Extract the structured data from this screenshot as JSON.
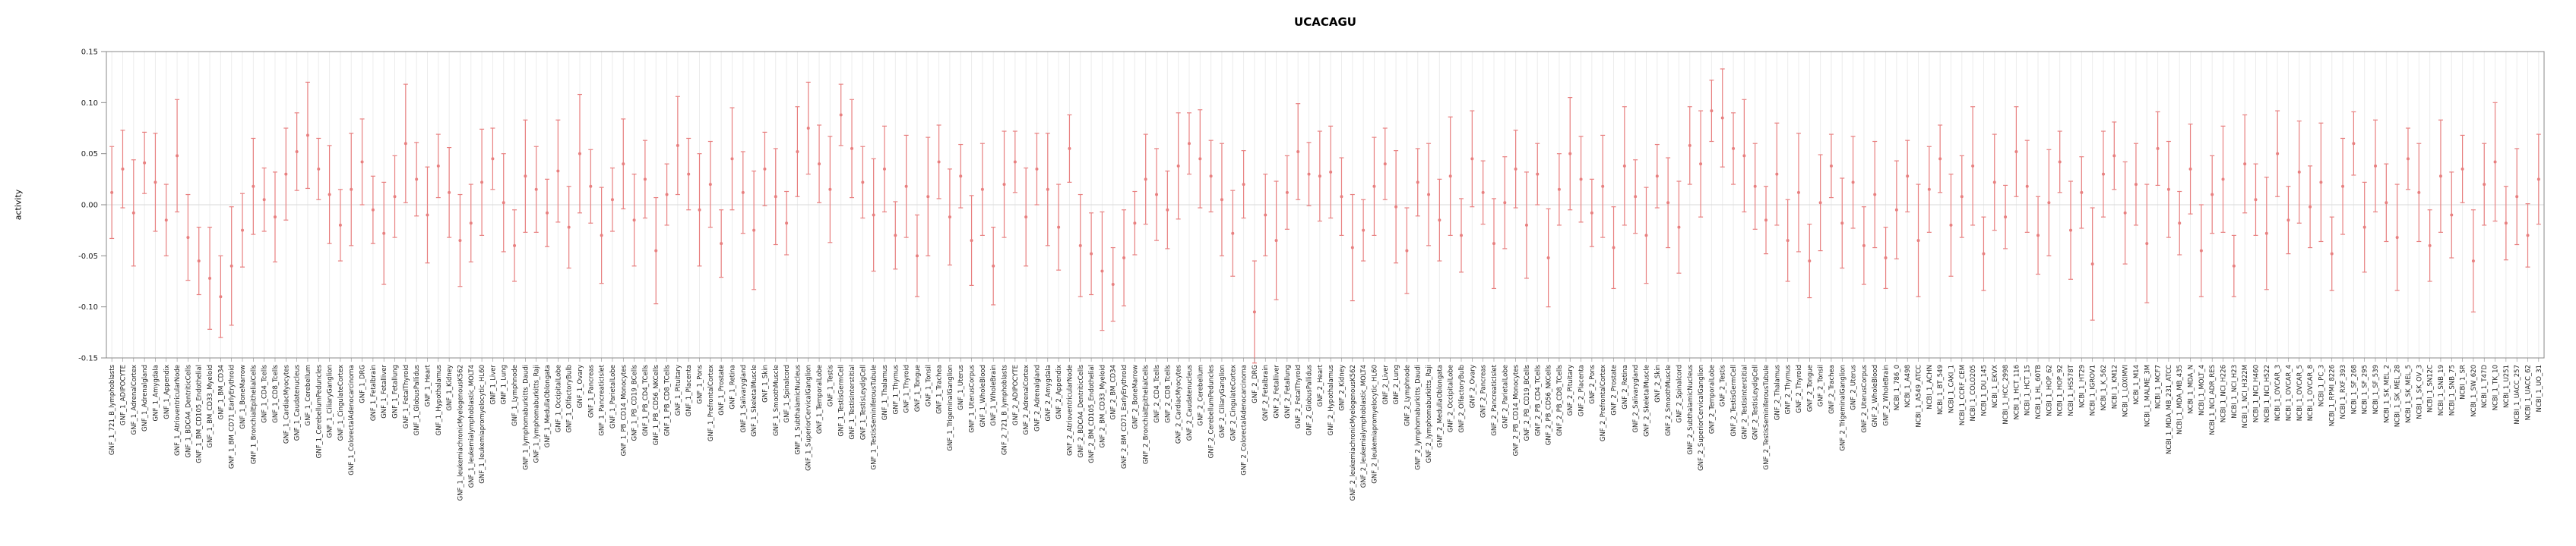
{
  "chart_data": {
    "type": "scatter",
    "title": "UCACAGU",
    "ylabel": "activity",
    "xlabel": "",
    "ylim": [
      -0.15,
      0.15
    ],
    "yticks": [
      -0.15,
      -0.1,
      -0.05,
      0.0,
      0.05,
      0.1,
      0.15
    ],
    "ytick_labels": [
      "-0.15",
      "-0.10",
      "-0.05",
      "0.00",
      "0.05",
      "0.10",
      "0.15"
    ],
    "error_type": "errorbar_with_caps",
    "legend": "none",
    "grid": "vertical-per-sample",
    "colors": {
      "point": "#e88080",
      "grid": "#ececec",
      "axis": "#888888",
      "zero_line": "#d9d9d9",
      "text": "#222222"
    },
    "categories": [
      "GNF_1_721_B_lymphoblasts",
      "GNF_1_ADIPOCYTE",
      "GNF_1_AdrenalCortex",
      "GNF_1_Adrenalgland",
      "GNF_1_Amygdala",
      "GNF_1_Appendix",
      "GNF_1_AtrioventricularNode",
      "GNF_1_BDCA4_DentriticCells",
      "GNF_1_BM_CD105_Endothelial",
      "GNF_1_BM_CD33_Myeloid",
      "GNF_1_BM_CD34",
      "GNF_1_BM_CD71_EarlyErythroid",
      "GNF_1_BoneMarrow",
      "GNF_1_BronchialEpithelialCells",
      "GNF_1_CD4_Tcells",
      "GNF_1_CD8_Tcells",
      "GNF_1_CardiacMyocytes",
      "GNF_1_Caudatenucleus",
      "GNF_1_Cerebellum",
      "GNF_1_CerebellumPeduncles",
      "GNF_1_CiliaryGanglion",
      "GNF_1_CingulateCortex",
      "GNF_1_ColorectalAdenocarcinoma",
      "GNF_1_DRG",
      "GNF_1_Fetalbrain",
      "GNF_1_Fetalliver",
      "GNF_1_Fetallung",
      "GNF_1_FetalThyroid",
      "GNF_1_GlobusPallidus",
      "GNF_1_Heart",
      "GNF_1_Hypothalamus",
      "GNF_1_Kidney",
      "GNF_1_leukemiachronicMyelogenousK562",
      "GNF_1_leukemialymphoblastic_MOLT4",
      "GNF_1_leukemiapromyelocytic_HL60",
      "GNF_1_Liver",
      "GNF_1_Lung",
      "GNF_1_Lymphnode",
      "GNF_1_lymphomaburkitts_Daudi",
      "GNF_1_lymphomaburkitts_Raji",
      "GNF_1_MedullaOblongata",
      "GNF_1_OccipitalLobe",
      "GNF_1_OlfactoryBulb",
      "GNF_1_Ovary",
      "GNF_1_Pancreas",
      "GNF_1_PancreaticIslet",
      "GNF_1_ParietalLobe",
      "GNF_1_PB_CD14_Monocytes",
      "GNF_1_PB_CD19_BCells",
      "GNF_1_PB_CD4_TCells",
      "GNF_1_PB_CD56_NKCells",
      "GNF_1_PB_CD8_TCells",
      "GNF_1_Pituitary",
      "GNF_1_Placenta",
      "GNF_1_Pons",
      "GNF_1_PrefrontalCortex",
      "GNF_1_Prostate",
      "GNF_1_Retina",
      "GNF_1_Salivarygland",
      "GNF_1_SkeletalMuscle",
      "GNF_1_Skin",
      "GNF_1_SmoothMuscle",
      "GNF_1_Spinalcord",
      "GNF_1_SubthalamicNucleus",
      "GNF_1_SuperiorCervicalGanglion",
      "GNF_1_TemporalLobe",
      "GNF_1_Testis",
      "GNF_1_TestisGermCell",
      "GNF_1_TestisInterstitial",
      "GNF_1_TestisLeydigCell",
      "GNF_1_TestisSeminiferousTubule",
      "GNF_1_Thalamus",
      "GNF_1_Thymus",
      "GNF_1_Thyroid",
      "GNF_1_Tongue",
      "GNF_1_Tonsil",
      "GNF_1_Trachea",
      "GNF_1_TrigeminalGanglion",
      "GNF_1_Uterus",
      "GNF_1_UterusCorpus",
      "GNF_1_WholeBlood",
      "GNF_1_WholeBrain",
      "GNF_2_721_B_lymphoblasts",
      "GNF_2_ADIPOCYTE",
      "GNF_2_AdrenalCortex",
      "GNF_2_Adrenalgland",
      "GNF_2_Amygdala",
      "GNF_2_Appendix",
      "GNF_2_AtrioventricularNode",
      "GNF_2_BDCA4_DentriticCells",
      "GNF_2_BM_CD105_Endothelial",
      "GNF_2_BM_CD33_Myeloid",
      "GNF_2_BM_CD34",
      "GNF_2_BM_CD71_EarlyErythroid",
      "GNF_2_BoneMarrow",
      "GNF_2_BronchialEpithelialCells",
      "GNF_2_CD4_Tcells",
      "GNF_2_CD8_Tcells",
      "GNF_2_CardiacMyocytes",
      "GNF_2_Caudatenucleus",
      "GNF_2_Cerebellum",
      "GNF_2_CerebellumPeduncles",
      "GNF_2_CiliaryGanglion",
      "GNF_2_CingulateCortex",
      "GNF_2_ColorectalAdenocarcinoma",
      "GNF_2_DRG",
      "GNF_2_Fetalbrain",
      "GNF_2_Fetalliver",
      "GNF_2_Fetallung",
      "GNF_2_FetalThyroid",
      "GNF_2_GlobusPallidus",
      "GNF_2_Heart",
      "GNF_2_Hypothalamus",
      "GNF_2_Kidney",
      "GNF_2_leukemiachronicMyelogenousK562",
      "GNF_2_leukemialymphoblastic_MOLT4",
      "GNF_2_leukemiapromyelocytic_HL60",
      "GNF_2_Liver",
      "GNF_2_Lung",
      "GNF_2_Lymphnode",
      "GNF_2_lymphomaburkitts_Daudi",
      "GNF_2_lymphomaburkitts_Raji",
      "GNF_2_MedullaOblongata",
      "GNF_2_OccipitalLobe",
      "GNF_2_OlfactoryBulb",
      "GNF_2_Ovary",
      "GNF_2_Pancreas",
      "GNF_2_PancreaticIslet",
      "GNF_2_ParietalLobe",
      "GNF_2_PB_CD14_Monocytes",
      "GNF_2_PB_CD19_BCells",
      "GNF_2_PB_CD4_TCells",
      "GNF_2_PB_CD56_NKCells",
      "GNF_2_PB_CD8_TCells",
      "GNF_2_Pituitary",
      "GNF_2_Placenta",
      "GNF_2_Pons",
      "GNF_2_PrefrontalCortex",
      "GNF_2_Prostate",
      "GNF_2_Retina",
      "GNF_2_Salivarygland",
      "GNF_2_SkeletalMuscle",
      "GNF_2_Skin",
      "GNF_2_SmoothMuscle",
      "GNF_2_Spinalcord",
      "GNF_2_SubthalamicNucleus",
      "GNF_2_SuperiorCervicalGanglion",
      "GNF_2_TemporalLobe",
      "GNF_2_Testis",
      "GNF_2_TestisGermCell",
      "GNF_2_TestisInterstitial",
      "GNF_2_TestisLeydigCell",
      "GNF_2_TestisSeminiferousTubule",
      "GNF_2_Thalamus",
      "GNF_2_Thymus",
      "GNF_2_Thyroid",
      "GNF_2_Tongue",
      "GNF_2_Tonsil",
      "GNF_2_Trachea",
      "GNF_2_TrigeminalGanglion",
      "GNF_2_Uterus",
      "GNF_2_UterusCorpus",
      "GNF_2_WholeBlood",
      "GNF_2_WholeBrain",
      "NCBI_1_786_0",
      "NCBI_1_A498",
      "NCBI_1_A549_ATCC",
      "NCBI_1_ACHN",
      "NCBI_1_BT_549",
      "NCBI_1_CAKI_1",
      "NCBI_1_CCRF_CEM",
      "NCBI_1_COLO205",
      "NCBI_1_DU_145",
      "NCBI_1_EKVX",
      "NCBI_1_HCC_2998",
      "NCBI_1_HCT_116",
      "NCBI_1_HCT_15",
      "NCBI_1_HL_60TB",
      "NCBI_1_HOP_62",
      "NCBI_1_HOP_92",
      "NCBI_1_HS578T",
      "NCBI_1_HT29",
      "NCBI_1_IGROV1",
      "NCBI_1_K_562",
      "NCBI_1_KM12",
      "NCBI_1_LOXIMVI",
      "NCBI_1_M14",
      "NCBI_1_MALME_3M",
      "NCBI_1_MCF7",
      "NCBI_1_MDA_MB_231_ATCC",
      "NCBI_1_MDA_MB_435",
      "NCBI_1_MDA_N",
      "NCBI_1_MOLT_4",
      "NCBI_1_NCI_ADR_RES",
      "NCBI_1_NCI_H226",
      "NCBI_1_NCI_H23",
      "NCBI_1_NCI_H322M",
      "NCBI_1_NCI_H460",
      "NCBI_1_NCI_H522",
      "NCBI_1_OVCAR_3",
      "NCBI_1_OVCAR_4",
      "NCBI_1_OVCAR_5",
      "NCBI_1_OVCAR_8",
      "NCBI_1_PC_3",
      "NCBI_1_RPMI_8226",
      "NCBI_1_RXF_393",
      "NCBI_1_SF_268",
      "NCBI_1_SF_295",
      "NCBI_1_SF_539",
      "NCBI_1_SK_MEL_2",
      "NCBI_1_SK_MEL_28",
      "NCBI_1_SK_MEL_5",
      "NCBI_1_SK_OV_3",
      "NCBI_1_SN12C",
      "NCBI_1_SNB_19",
      "NCBI_1_SNB_75",
      "NCBI_1_SR",
      "NCBI_1_SW_620",
      "NCBI_1_T47D",
      "NCBI_1_TK_10",
      "NCBI_1_U251",
      "NCBI_1_UACC_257",
      "NCBI_1_UACC_62",
      "NCBI_1_UO_31"
    ],
    "values": [
      0.012,
      0.035,
      -0.008,
      0.041,
      0.022,
      -0.015,
      0.048,
      -0.032,
      -0.055,
      -0.072,
      -0.09,
      -0.06,
      -0.025,
      0.018,
      0.005,
      -0.012,
      0.03,
      0.052,
      0.068,
      0.035,
      0.01,
      -0.02,
      0.015,
      0.042,
      -0.005,
      -0.028,
      0.008,
      0.06,
      0.025,
      -0.01,
      0.038,
      0.012,
      -0.035,
      -0.018,
      0.022,
      0.045,
      0.002,
      -0.04,
      0.028,
      0.015,
      -0.008,
      0.033,
      -0.022,
      0.05,
      0.018,
      -0.03,
      0.005,
      0.04,
      -0.015,
      0.025,
      -0.045,
      0.01,
      0.058,
      0.03,
      -0.005,
      0.02,
      -0.038,
      0.045,
      0.012,
      -0.025,
      0.035,
      0.008,
      -0.018,
      0.052,
      0.075,
      0.04,
      0.015,
      0.088,
      0.055,
      0.022,
      -0.01,
      0.035,
      -0.03,
      0.018,
      -0.05,
      0.008,
      0.042,
      -0.012,
      0.028,
      -0.035,
      0.015,
      -0.06,
      0.02,
      0.042,
      -0.012,
      0.035,
      0.015,
      -0.022,
      0.055,
      -0.04,
      -0.048,
      -0.065,
      -0.078,
      -0.052,
      -0.018,
      0.025,
      0.01,
      -0.005,
      0.038,
      0.06,
      0.045,
      0.028,
      0.005,
      -0.028,
      0.02,
      -0.105,
      -0.01,
      -0.035,
      0.012,
      0.052,
      0.03,
      0.028,
      0.032,
      0.008,
      -0.042,
      -0.025,
      0.018,
      0.04,
      -0.002,
      -0.045,
      0.022,
      0.01,
      -0.015,
      0.028,
      -0.03,
      0.045,
      0.012,
      -0.038,
      0.002,
      0.035,
      -0.02,
      0.03,
      -0.052,
      0.015,
      0.05,
      0.025,
      -0.008,
      0.018,
      -0.042,
      0.038,
      0.008,
      -0.03,
      0.028,
      0.002,
      -0.022,
      0.058,
      0.04,
      0.092,
      0.085,
      0.055,
      0.048,
      0.018,
      -0.015,
      0.03,
      -0.035,
      0.012,
      -0.055,
      0.002,
      0.038,
      -0.018,
      0.022,
      -0.04,
      0.01,
      -0.052,
      -0.005,
      0.028,
      -0.035,
      0.015,
      0.045,
      -0.02,
      0.008,
      0.038,
      -0.048,
      0.022,
      -0.012,
      0.052,
      0.018,
      -0.03,
      0.002,
      0.042,
      -0.025,
      0.012,
      -0.058,
      0.03,
      0.048,
      -0.008,
      0.02,
      -0.038,
      0.055,
      0.015,
      -0.018,
      0.035,
      -0.045,
      0.01,
      0.025,
      -0.06,
      0.04,
      0.005,
      -0.028,
      0.05,
      -0.015,
      0.032,
      -0.002,
      0.022,
      -0.048,
      0.018,
      0.06,
      -0.022,
      0.038,
      0.002,
      -0.032,
      0.045,
      0.012,
      -0.04,
      0.028,
      -0.01,
      0.035,
      -0.055,
      0.02,
      0.042,
      -0.018,
      0.008,
      -0.03,
      0.025
    ],
    "errors": [
      0.045,
      0.038,
      0.052,
      0.03,
      0.048,
      0.035,
      0.055,
      0.042,
      0.033,
      0.05,
      0.04,
      0.058,
      0.036,
      0.047,
      0.031,
      0.044,
      0.045,
      0.038,
      0.052,
      0.03,
      0.048,
      0.035,
      0.055,
      0.042,
      0.033,
      0.05,
      0.04,
      0.058,
      0.036,
      0.047,
      0.031,
      0.044,
      0.045,
      0.038,
      0.052,
      0.03,
      0.048,
      0.035,
      0.055,
      0.042,
      0.033,
      0.05,
      0.04,
      0.058,
      0.036,
      0.047,
      0.031,
      0.044,
      0.045,
      0.038,
      0.052,
      0.03,
      0.048,
      0.035,
      0.055,
      0.042,
      0.033,
      0.05,
      0.04,
      0.058,
      0.036,
      0.047,
      0.031,
      0.044,
      0.045,
      0.038,
      0.052,
      0.03,
      0.048,
      0.035,
      0.055,
      0.042,
      0.033,
      0.05,
      0.04,
      0.058,
      0.036,
      0.047,
      0.031,
      0.044,
      0.045,
      0.038,
      0.052,
      0.03,
      0.048,
      0.035,
      0.055,
      0.042,
      0.033,
      0.05,
      0.04,
      0.058,
      0.036,
      0.047,
      0.031,
      0.044,
      0.045,
      0.038,
      0.052,
      0.03,
      0.048,
      0.035,
      0.055,
      0.042,
      0.033,
      0.05,
      0.04,
      0.058,
      0.036,
      0.047,
      0.031,
      0.044,
      0.045,
      0.038,
      0.052,
      0.03,
      0.048,
      0.035,
      0.055,
      0.042,
      0.033,
      0.05,
      0.04,
      0.058,
      0.036,
      0.047,
      0.031,
      0.044,
      0.045,
      0.038,
      0.052,
      0.03,
      0.048,
      0.035,
      0.055,
      0.042,
      0.033,
      0.05,
      0.04,
      0.058,
      0.036,
      0.047,
      0.031,
      0.044,
      0.045,
      0.038,
      0.052,
      0.03,
      0.048,
      0.035,
      0.055,
      0.042,
      0.033,
      0.05,
      0.04,
      0.058,
      0.036,
      0.047,
      0.031,
      0.044,
      0.045,
      0.038,
      0.052,
      0.03,
      0.048,
      0.035,
      0.055,
      0.042,
      0.033,
      0.05,
      0.04,
      0.058,
      0.036,
      0.047,
      0.031,
      0.044,
      0.045,
      0.038,
      0.052,
      0.03,
      0.048,
      0.035,
      0.055,
      0.042,
      0.033,
      0.05,
      0.04,
      0.058,
      0.036,
      0.047,
      0.031,
      0.044,
      0.045,
      0.038,
      0.052,
      0.03,
      0.048,
      0.035,
      0.055,
      0.042,
      0.033,
      0.05,
      0.04,
      0.058,
      0.036,
      0.047,
      0.031,
      0.044,
      0.045,
      0.038,
      0.052,
      0.03,
      0.048,
      0.035,
      0.055,
      0.042,
      0.033,
      0.05,
      0.04,
      0.058,
      0.036,
      0.047,
      0.031,
      0.044
    ]
  }
}
